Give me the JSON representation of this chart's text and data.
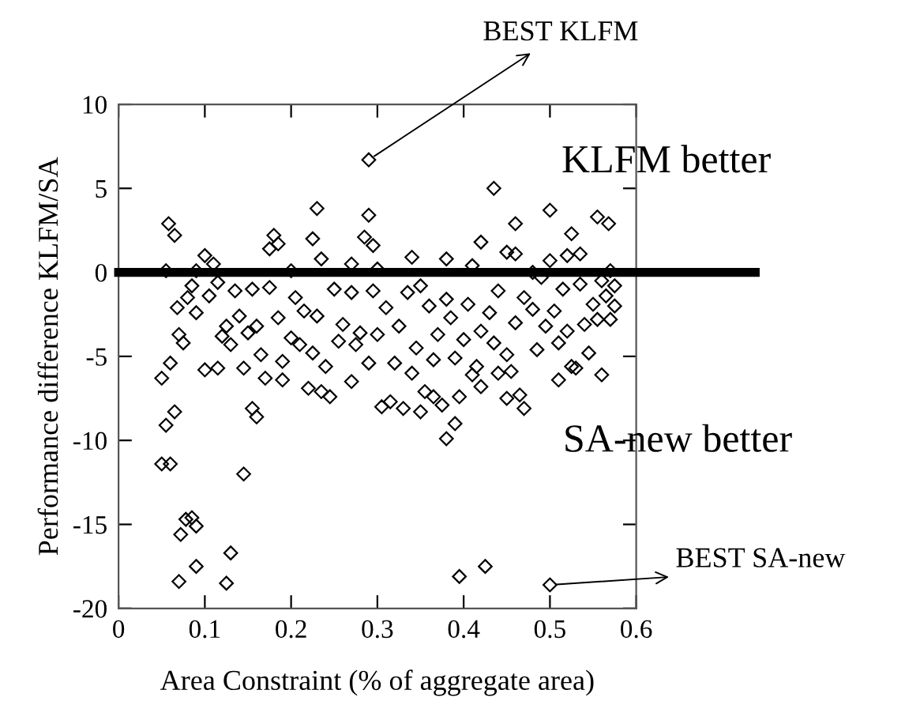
{
  "chart_data": {
    "type": "scatter",
    "xlabel": "Area Constraint (% of aggregate area)",
    "ylabel": "Performance difference KLFM/SA",
    "xlim": [
      0,
      0.6
    ],
    "xticks": [
      0,
      0.1,
      0.2,
      0.3,
      0.4,
      0.5,
      0.6
    ],
    "ylim": [
      -20,
      10
    ],
    "yticks": [
      -20,
      -15,
      -10,
      -5,
      0,
      5,
      10
    ],
    "grid": false,
    "marker": "diamond",
    "ref_lines": [
      {
        "axis": "y",
        "value": 0,
        "color": "#000000"
      }
    ],
    "annotations": [
      {
        "text": "BEST KLFM",
        "x": 0.29,
        "y": 6.7
      },
      {
        "text": "BEST SA-new",
        "x": 0.5,
        "y": -18.6
      },
      "KLFM better",
      "SA-new better"
    ],
    "series": [
      {
        "color": "#000000",
        "x": [
          0.29,
          0.435,
          0.23,
          0.058,
          0.065,
          0.29,
          0.5,
          0.555,
          0.568,
          0.46,
          0.18,
          0.225,
          0.285,
          0.42,
          0.525,
          0.1,
          0.175,
          0.185,
          0.295,
          0.535,
          0.45,
          0.46,
          0.34,
          0.38,
          0.235,
          0.5,
          0.52,
          0.11,
          0.27,
          0.41,
          0.055,
          0.09,
          0.2,
          0.3,
          0.48,
          0.57,
          0.05,
          0.055,
          0.06,
          0.065,
          0.05,
          0.06,
          0.072,
          0.078,
          0.085,
          0.09,
          0.07,
          0.09,
          0.13,
          0.125,
          0.145,
          0.155,
          0.16,
          0.395,
          0.425,
          0.5,
          0.38,
          0.39,
          0.395,
          0.305,
          0.315,
          0.33,
          0.35,
          0.355,
          0.365,
          0.375,
          0.45,
          0.465,
          0.47,
          0.22,
          0.235,
          0.245,
          0.27,
          0.17,
          0.19,
          0.1,
          0.115,
          0.145,
          0.56,
          0.51,
          0.545,
          0.525,
          0.53,
          0.42,
          0.41,
          0.44,
          0.455,
          0.07,
          0.075,
          0.068,
          0.08,
          0.09,
          0.085,
          0.105,
          0.115,
          0.12,
          0.125,
          0.13,
          0.135,
          0.14,
          0.15,
          0.155,
          0.16,
          0.165,
          0.175,
          0.185,
          0.19,
          0.2,
          0.205,
          0.21,
          0.215,
          0.225,
          0.23,
          0.24,
          0.25,
          0.255,
          0.26,
          0.27,
          0.275,
          0.28,
          0.29,
          0.295,
          0.3,
          0.31,
          0.32,
          0.325,
          0.335,
          0.34,
          0.345,
          0.35,
          0.36,
          0.365,
          0.37,
          0.38,
          0.385,
          0.39,
          0.4,
          0.405,
          0.415,
          0.42,
          0.43,
          0.435,
          0.44,
          0.45,
          0.46,
          0.47,
          0.48,
          0.485,
          0.49,
          0.495,
          0.505,
          0.51,
          0.515,
          0.52,
          0.535,
          0.54,
          0.55,
          0.555,
          0.56,
          0.565,
          0.57,
          0.575,
          0.575
        ],
        "values": [
          6.7,
          5.0,
          3.8,
          2.9,
          2.2,
          3.4,
          3.7,
          3.3,
          2.9,
          2.9,
          2.2,
          2.0,
          2.1,
          1.8,
          2.3,
          1.0,
          1.4,
          1.7,
          1.6,
          1.1,
          1.2,
          1.1,
          0.9,
          0.8,
          0.8,
          0.7,
          1.0,
          0.5,
          0.5,
          0.4,
          0.1,
          0.1,
          0.1,
          0.2,
          0.0,
          0.1,
          -6.3,
          -9.1,
          -5.4,
          -8.3,
          -11.4,
          -11.4,
          -15.6,
          -14.7,
          -14.6,
          -15.1,
          -18.4,
          -17.5,
          -16.7,
          -18.5,
          -12.0,
          -8.1,
          -8.6,
          -18.1,
          -17.5,
          -18.6,
          -9.9,
          -9.0,
          -7.4,
          -8.0,
          -7.7,
          -8.1,
          -8.3,
          -7.1,
          -7.4,
          -7.9,
          -7.5,
          -7.3,
          -8.1,
          -6.9,
          -7.1,
          -7.4,
          -6.5,
          -6.3,
          -6.4,
          -5.8,
          -5.7,
          -5.7,
          -6.1,
          -6.4,
          -4.8,
          -5.6,
          -5.7,
          -6.8,
          -6.1,
          -6.0,
          -5.9,
          -3.7,
          -4.2,
          -2.1,
          -1.5,
          -2.4,
          -0.8,
          -1.4,
          -0.6,
          -3.8,
          -3.2,
          -4.3,
          -1.1,
          -2.6,
          -3.6,
          -1.0,
          -3.2,
          -4.9,
          -0.9,
          -2.7,
          -5.3,
          -3.9,
          -1.5,
          -4.3,
          -2.3,
          -4.8,
          -2.6,
          -5.6,
          -1.0,
          -4.1,
          -3.1,
          -1.2,
          -4.3,
          -3.6,
          -5.4,
          -1.1,
          -3.7,
          -2.1,
          -5.4,
          -3.2,
          -1.2,
          -6.0,
          -4.5,
          -0.8,
          -2.0,
          -5.2,
          -3.7,
          -1.6,
          -2.7,
          -5.1,
          -4.0,
          -1.9,
          -5.6,
          -3.5,
          -2.4,
          -4.2,
          -1.1,
          -4.9,
          -3.0,
          -1.5,
          -2.2,
          -4.6,
          -0.3,
          -3.2,
          -2.3,
          -4.2,
          -1.0,
          -3.5,
          -0.7,
          -3.1,
          -1.9,
          -2.8,
          -0.5,
          -1.4,
          -2.8,
          -0.8,
          -2.0
        ]
      }
    ]
  }
}
